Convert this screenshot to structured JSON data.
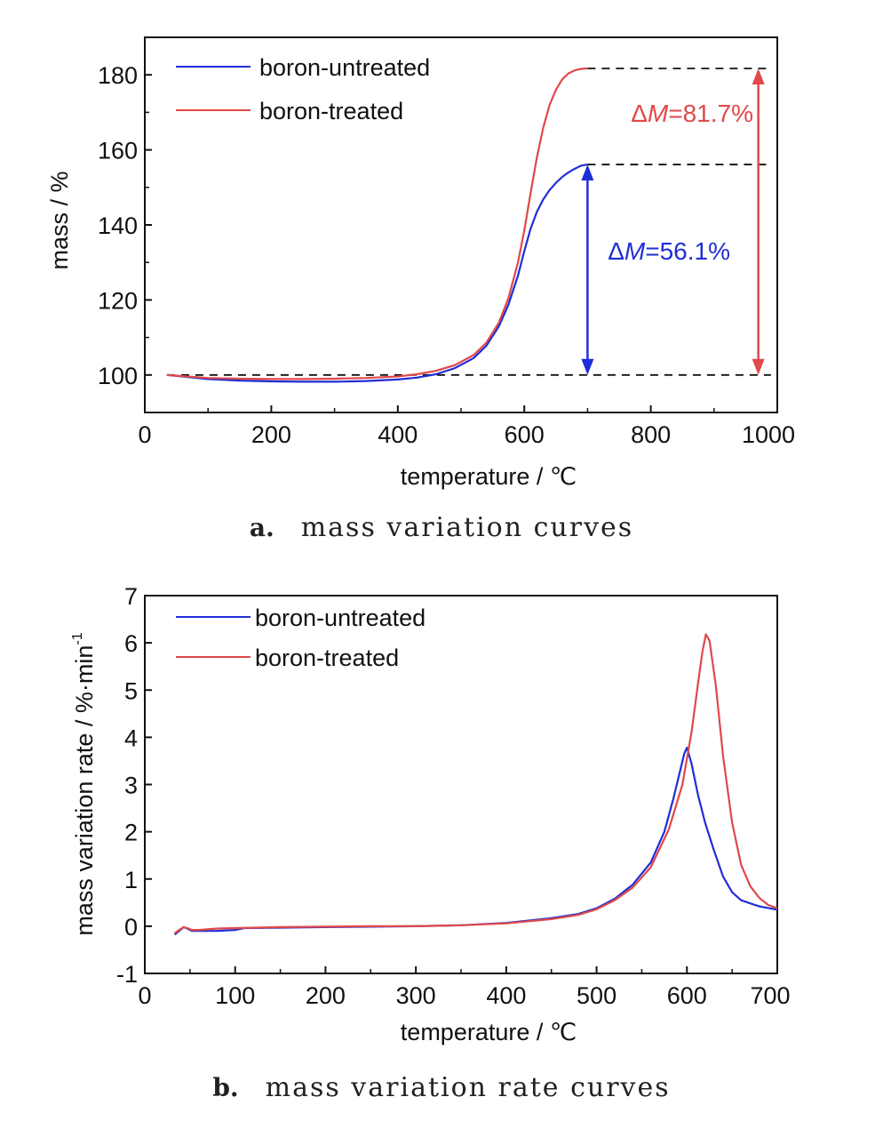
{
  "colors": {
    "untreated": "#1f2ed6",
    "treated": "#e0484a",
    "axis": "#111111"
  },
  "chart_data": [
    {
      "type": "line",
      "xlabel": "temperature / ℃",
      "ylabel": "mass / %",
      "xlim": [
        0,
        1000
      ],
      "ylim": [
        90,
        190
      ],
      "xticks": [
        0,
        200,
        400,
        600,
        800,
        1000
      ],
      "yticks": [
        100,
        120,
        140,
        160,
        180
      ],
      "legend": "top-left",
      "grid": false,
      "series": [
        {
          "name": "boron-untreated",
          "color": "#1f2ed6",
          "x": [
            35,
            60,
            100,
            150,
            200,
            250,
            300,
            350,
            400,
            430,
            460,
            490,
            520,
            540,
            560,
            575,
            590,
            600,
            610,
            620,
            630,
            640,
            650,
            660,
            670,
            680,
            690,
            700
          ],
          "y": [
            100,
            99.6,
            98.9,
            98.5,
            98.3,
            98.2,
            98.2,
            98.4,
            98.8,
            99.3,
            100.2,
            101.8,
            104.5,
            107.8,
            113,
            118.8,
            126.5,
            133,
            139,
            143.5,
            146.8,
            149.3,
            151.2,
            152.8,
            154,
            155,
            155.8,
            156.1
          ]
        },
        {
          "name": "boron-treated",
          "color": "#e0484a",
          "x": [
            35,
            60,
            100,
            150,
            200,
            250,
            300,
            350,
            400,
            430,
            460,
            490,
            520,
            540,
            560,
            575,
            590,
            600,
            610,
            620,
            630,
            640,
            650,
            660,
            670,
            680,
            690,
            700
          ],
          "y": [
            100,
            99.7,
            99.2,
            99,
            98.9,
            98.9,
            99,
            99.2,
            99.6,
            100.2,
            101.1,
            102.6,
            105.3,
            108.6,
            114,
            120.5,
            130,
            138.5,
            148.5,
            158,
            166,
            172,
            176,
            178.8,
            180.4,
            181.2,
            181.6,
            181.7
          ]
        }
      ],
      "reference_lines": [
        {
          "y": 100,
          "x_from": 35,
          "x_to": 990
        },
        {
          "y": 156.1,
          "x_from": 700,
          "x_to": 990
        },
        {
          "y": 181.7,
          "x_from": 700,
          "x_to": 990
        }
      ],
      "annotations": [
        {
          "text_prefix": "Δ",
          "text_var": "M",
          "text_suffix": "=56.1%",
          "color": "#1f2ed6",
          "x": 700,
          "y_from": 100,
          "y_to": 156.1
        },
        {
          "text_prefix": "Δ",
          "text_var": "M",
          "text_suffix": "=81.7%",
          "color": "#e0484a",
          "x": 970,
          "y_from": 100,
          "y_to": 181.7
        }
      ]
    },
    {
      "type": "line",
      "xlabel": "temperature / ℃",
      "ylabel_main": "mass variation rate / %·min",
      "ylabel_sup": "-1",
      "xlim": [
        0,
        700
      ],
      "ylim": [
        -1,
        7
      ],
      "xticks": [
        0,
        100,
        200,
        300,
        400,
        500,
        600,
        700
      ],
      "yticks": [
        -1,
        0,
        1,
        2,
        3,
        4,
        5,
        6,
        7
      ],
      "legend": "top-left",
      "grid": false,
      "series": [
        {
          "name": "boron-untreated",
          "color": "#1f2ed6",
          "x": [
            33,
            38,
            43,
            47,
            52,
            60,
            80,
            100,
            110,
            150,
            200,
            250,
            300,
            350,
            400,
            450,
            480,
            500,
            520,
            540,
            560,
            575,
            585,
            592,
            597,
            600,
            605,
            612,
            620,
            630,
            640,
            650,
            660,
            680,
            700
          ],
          "y": [
            -0.18,
            -0.1,
            -0.02,
            -0.05,
            -0.1,
            -0.1,
            -0.1,
            -0.08,
            -0.04,
            -0.03,
            -0.02,
            -0.01,
            0,
            0.02,
            0.07,
            0.17,
            0.26,
            0.38,
            0.58,
            0.88,
            1.35,
            2.0,
            2.7,
            3.25,
            3.65,
            3.78,
            3.45,
            2.8,
            2.2,
            1.6,
            1.05,
            0.72,
            0.55,
            0.42,
            0.35
          ]
        },
        {
          "name": "boron-treated",
          "color": "#e0484a",
          "x": [
            33,
            38,
            43,
            47,
            52,
            60,
            80,
            100,
            150,
            200,
            250,
            300,
            350,
            400,
            450,
            480,
            500,
            520,
            540,
            560,
            580,
            595,
            605,
            612,
            617,
            621,
            625,
            632,
            640,
            650,
            660,
            670,
            680,
            690,
            700
          ],
          "y": [
            -0.15,
            -0.08,
            -0.02,
            -0.04,
            -0.08,
            -0.08,
            -0.05,
            -0.04,
            -0.02,
            -0.01,
            0,
            0,
            0.02,
            0.06,
            0.15,
            0.24,
            0.36,
            0.55,
            0.82,
            1.25,
            2.05,
            3.0,
            4.1,
            5.1,
            5.8,
            6.18,
            6.05,
            5.1,
            3.6,
            2.2,
            1.3,
            0.85,
            0.6,
            0.45,
            0.38
          ]
        }
      ]
    }
  ],
  "captions": [
    {
      "letter": "a.",
      "text": "mass variation curves"
    },
    {
      "letter": "b.",
      "text": "mass variation rate curves"
    }
  ]
}
